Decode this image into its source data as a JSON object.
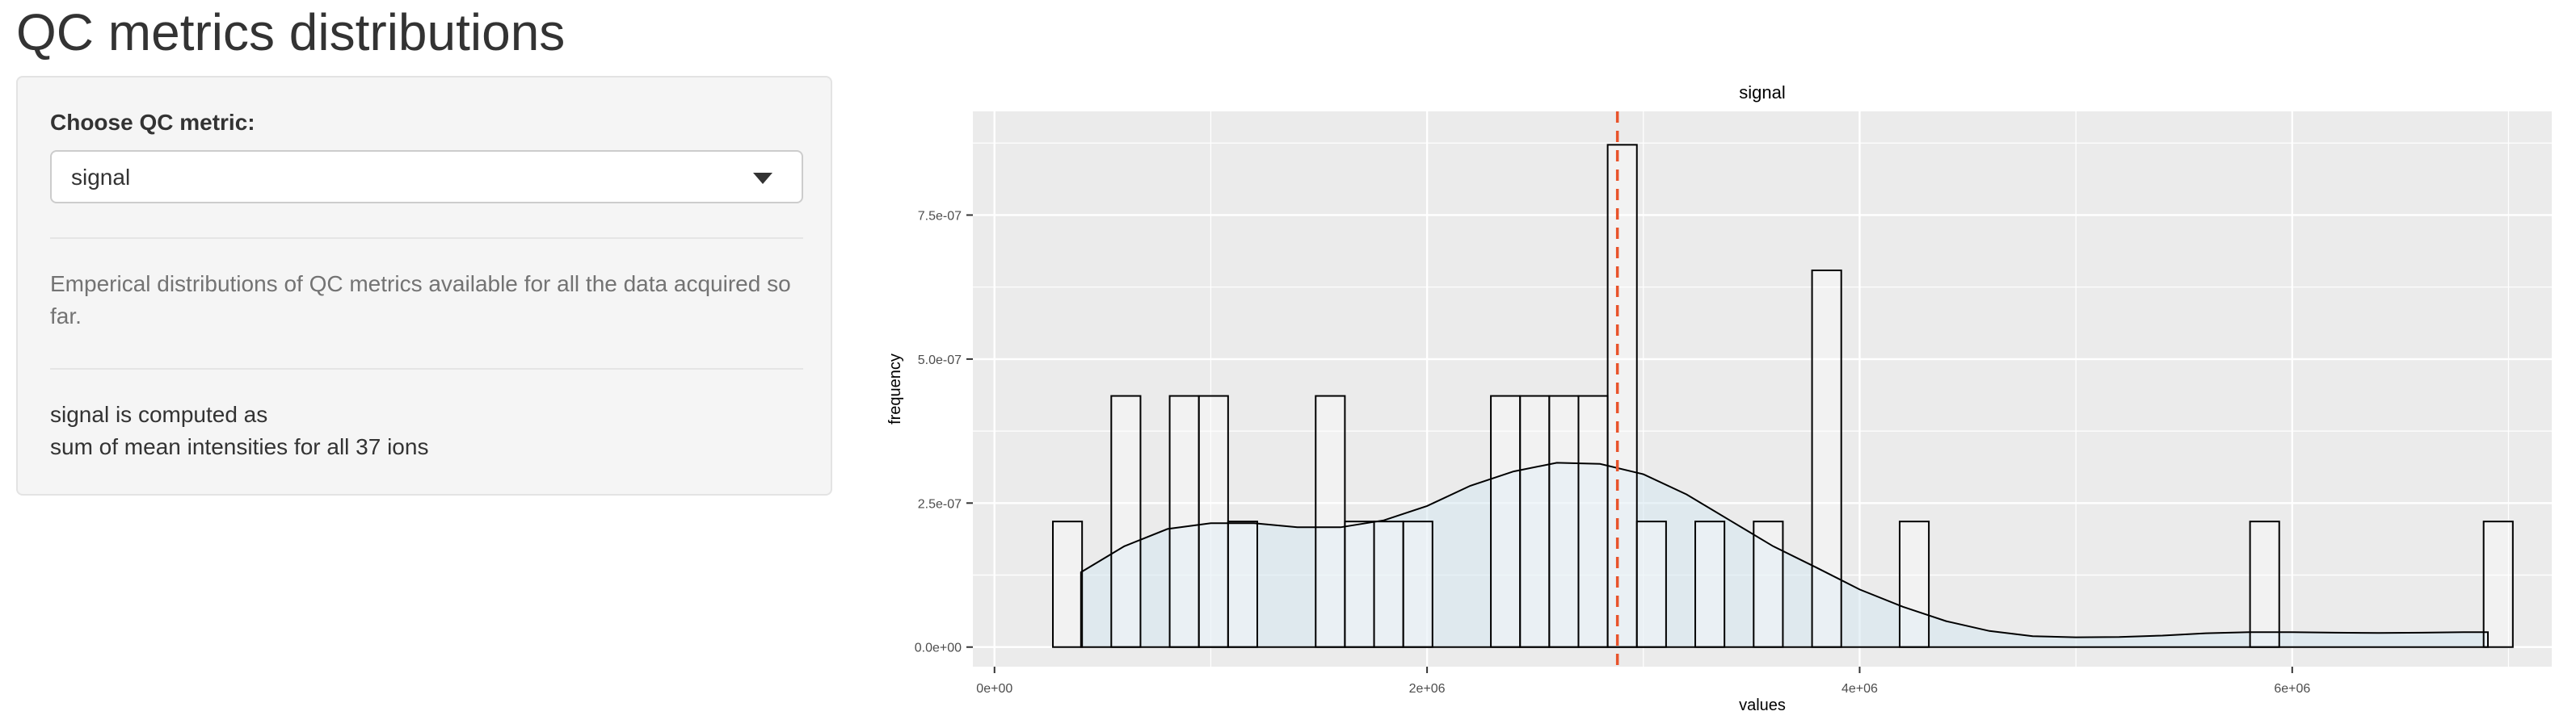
{
  "page": {
    "title": "QC metrics distributions"
  },
  "sidebar": {
    "control_label": "Choose QC metric:",
    "select": {
      "value": "signal",
      "caret_icon": "caret-down-icon"
    },
    "help_text": "Emperical distributions of QC metrics available for all the data acquired so far.",
    "formula": {
      "line1": "signal is computed as",
      "line2": "sum of mean intensities for all 37 ions"
    }
  },
  "chart_data": {
    "type": "histogram",
    "title": "signal",
    "xlabel": "values",
    "ylabel": "frequency",
    "xlim": [
      -100000,
      7200000
    ],
    "ylim": [
      -4.5e-08,
      9.3e-07
    ],
    "x_ticks": [
      {
        "value": 0,
        "label": "0e+00"
      },
      {
        "value": 2000000,
        "label": "2e+06"
      },
      {
        "value": 4000000,
        "label": "4e+06"
      },
      {
        "value": 6000000,
        "label": "6e+06"
      }
    ],
    "y_ticks": [
      {
        "value": 0,
        "label": "0.0e+00"
      },
      {
        "value": 2.5e-07,
        "label": "2.5e-07"
      },
      {
        "value": 5e-07,
        "label": "5.0e-07"
      },
      {
        "value": 7.5e-07,
        "label": "7.5e-07"
      }
    ],
    "bin_width": 135000,
    "bins": [
      {
        "x_start": 270000,
        "count": 1
      },
      {
        "x_start": 540000,
        "count": 2
      },
      {
        "x_start": 810000,
        "count": 2
      },
      {
        "x_start": 945000,
        "count": 2
      },
      {
        "x_start": 1080000,
        "count": 1
      },
      {
        "x_start": 1485000,
        "count": 2
      },
      {
        "x_start": 1620000,
        "count": 1
      },
      {
        "x_start": 1755000,
        "count": 1
      },
      {
        "x_start": 1890000,
        "count": 1
      },
      {
        "x_start": 2295000,
        "count": 2
      },
      {
        "x_start": 2430000,
        "count": 2
      },
      {
        "x_start": 2565000,
        "count": 2
      },
      {
        "x_start": 2700000,
        "count": 2
      },
      {
        "x_start": 2835000,
        "count": 4
      },
      {
        "x_start": 2970000,
        "count": 1
      },
      {
        "x_start": 3240000,
        "count": 1
      },
      {
        "x_start": 3510000,
        "count": 1
      },
      {
        "x_start": 3780000,
        "count": 3
      },
      {
        "x_start": 4185000,
        "count": 1
      },
      {
        "x_start": 5805000,
        "count": 1
      },
      {
        "x_start": 6885000,
        "count": 1
      }
    ],
    "count_unit_density": 2.18e-07,
    "density_curve": [
      [
        400000,
        1.3e-07
      ],
      [
        600000,
        1.75e-07
      ],
      [
        800000,
        2.05e-07
      ],
      [
        1000000,
        2.15e-07
      ],
      [
        1200000,
        2.15e-07
      ],
      [
        1400000,
        2.08e-07
      ],
      [
        1600000,
        2.08e-07
      ],
      [
        1800000,
        2.2e-07
      ],
      [
        2000000,
        2.45e-07
      ],
      [
        2200000,
        2.8e-07
      ],
      [
        2400000,
        3.05e-07
      ],
      [
        2600000,
        3.2e-07
      ],
      [
        2800000,
        3.18e-07
      ],
      [
        3000000,
        3e-07
      ],
      [
        3200000,
        2.65e-07
      ],
      [
        3400000,
        2.2e-07
      ],
      [
        3600000,
        1.75e-07
      ],
      [
        3800000,
        1.38e-07
      ],
      [
        4000000,
        1e-07
      ],
      [
        4200000,
        7e-08
      ],
      [
        4400000,
        4.5e-08
      ],
      [
        4600000,
        2.8e-08
      ],
      [
        4800000,
        1.9e-08
      ],
      [
        5000000,
        1.7e-08
      ],
      [
        5200000,
        1.75e-08
      ],
      [
        5400000,
        2e-08
      ],
      [
        5600000,
        2.4e-08
      ],
      [
        5800000,
        2.6e-08
      ],
      [
        6000000,
        2.6e-08
      ],
      [
        6200000,
        2.5e-08
      ],
      [
        6400000,
        2.45e-08
      ],
      [
        6600000,
        2.5e-08
      ],
      [
        6800000,
        2.6e-08
      ],
      [
        6905000,
        2.6e-08
      ]
    ],
    "vline": {
      "x": 2880000,
      "color": "#e8532b",
      "style": "dashed"
    },
    "colors": {
      "panel_bg": "#ebebeb",
      "grid": "#ffffff",
      "bar_fill": "#ffffff",
      "bar_stroke": "#000000",
      "density_fill": "#d5e7f1",
      "density_stroke": "#000000"
    }
  }
}
